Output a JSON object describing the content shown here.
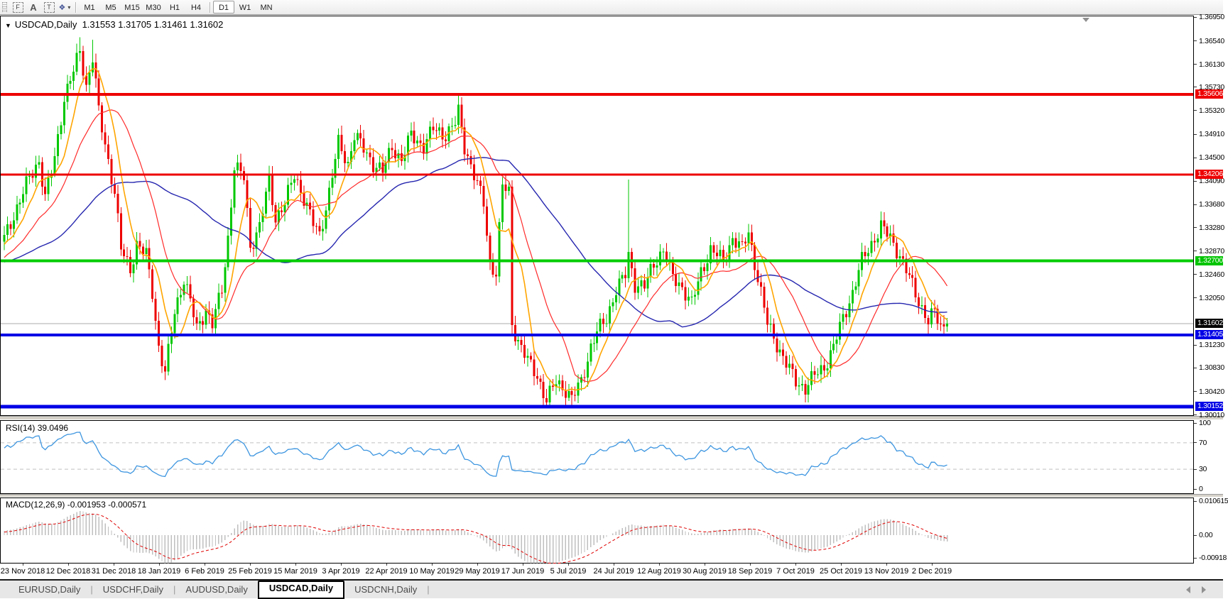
{
  "toolbar": {
    "tools": [
      {
        "name": "fibonacci",
        "label": "F"
      },
      {
        "name": "text",
        "label": "A"
      },
      {
        "name": "text-label",
        "label": "T"
      },
      {
        "name": "arrows",
        "label": "❖"
      }
    ],
    "dropdown_caret": "▾",
    "timeframes": [
      {
        "label": "M1"
      },
      {
        "label": "M5"
      },
      {
        "label": "M15"
      },
      {
        "label": "M30"
      },
      {
        "label": "H1"
      },
      {
        "label": "H4"
      },
      {
        "label": "D1"
      },
      {
        "label": "W1"
      },
      {
        "label": "MN"
      }
    ],
    "active_timeframe": "D1"
  },
  "chart": {
    "symbol_title": "USDCAD,Daily",
    "ohlc_text": "1.31553 1.31705 1.31461 1.31602",
    "title_triangle": "▼"
  },
  "chart_data": {
    "type": "candlestick",
    "symbol": "USDCAD",
    "timeframe": "Daily",
    "last_bar_ohlc": {
      "open": 1.31553,
      "high": 1.31705,
      "low": 1.31461,
      "close": 1.31602
    },
    "price_axis": {
      "ticks": [
        "1.36950",
        "1.36540",
        "1.36130",
        "1.35730",
        "1.35320",
        "1.34910",
        "1.34500",
        "1.34090",
        "1.33680",
        "1.33280",
        "1.32870",
        "1.32460",
        "1.32050",
        "1.31230",
        "1.30830",
        "1.30420",
        "1.30010"
      ],
      "max": 1.36955,
      "min": 1.30006
    },
    "x_labels": [
      "23 Nov 2018",
      "12 Dec 2018",
      "31 Dec 2018",
      "18 Jan 2019",
      "6 Feb 2019",
      "25 Feb 2019",
      "15 Mar 2019",
      "3 Apr 2019",
      "22 Apr 2019",
      "10 May 2019",
      "29 May 2019",
      "17 Jun 2019",
      "5 Jul 2019",
      "24 Jul 2019",
      "12 Aug 2019",
      "30 Aug 2019",
      "18 Sep 2019",
      "7 Oct 2019",
      "25 Oct 2019",
      "13 Nov 2019",
      "2 Dec 2019"
    ],
    "levels": [
      {
        "price": 1.35606,
        "color": "#EE0000",
        "width": 4,
        "badge": "1.35606",
        "badge_bg": "#EE0000"
      },
      {
        "price": 1.34206,
        "color": "#EE0000",
        "width": 3,
        "badge": "1.34206",
        "badge_bg": "#EE0000"
      },
      {
        "price": 1.327,
        "color": "#00CC00",
        "width": 4,
        "badge": "1.32700",
        "badge_bg": "#00C400"
      },
      {
        "price": 1.31405,
        "color": "#0000E6",
        "width": 4,
        "badge": "1.31405",
        "badge_bg": "#0000E6"
      },
      {
        "price": 1.30152,
        "color": "#0000E6",
        "width": 5,
        "badge": "1.30152",
        "badge_bg": "#0000E6"
      }
    ],
    "current_price": {
      "value": 1.31602,
      "badge": "1.31602",
      "line_color": "#ABABAB",
      "badge_bg": "#000000"
    },
    "candles": {
      "count": 300,
      "bull_color": "#00C800",
      "bear_color": "#EE0000",
      "close_keypoints": [
        [
          -60,
          1.322
        ],
        [
          -40,
          1.3285
        ],
        [
          -20,
          1.324
        ],
        [
          -5,
          1.3295
        ],
        [
          0,
          1.331
        ],
        [
          3,
          1.335
        ],
        [
          8,
          1.3415
        ],
        [
          11,
          1.3445
        ],
        [
          13,
          1.338
        ],
        [
          16,
          1.345
        ],
        [
          19,
          1.3555
        ],
        [
          22,
          1.36
        ],
        [
          24,
          1.3638
        ],
        [
          26,
          1.3575
        ],
        [
          28,
          1.3625
        ],
        [
          30,
          1.353
        ],
        [
          33,
          1.3445
        ],
        [
          35,
          1.339
        ],
        [
          37,
          1.329
        ],
        [
          40,
          1.3255
        ],
        [
          42,
          1.33
        ],
        [
          45,
          1.328
        ],
        [
          47,
          1.3215
        ],
        [
          49,
          1.312
        ],
        [
          51,
          1.3075
        ],
        [
          54,
          1.318
        ],
        [
          57,
          1.324
        ],
        [
          59,
          1.32
        ],
        [
          61,
          1.315
        ],
        [
          64,
          1.3185
        ],
        [
          66,
          1.316
        ],
        [
          69,
          1.322
        ],
        [
          71,
          1.331
        ],
        [
          73,
          1.3435
        ],
        [
          76,
          1.3415
        ],
        [
          78,
          1.3295
        ],
        [
          81,
          1.333
        ],
        [
          84,
          1.341
        ],
        [
          86,
          1.3345
        ],
        [
          89,
          1.337
        ],
        [
          92,
          1.342
        ],
        [
          95,
          1.338
        ],
        [
          98,
          1.3335
        ],
        [
          100,
          1.3315
        ],
        [
          103,
          1.339
        ],
        [
          106,
          1.3475
        ],
        [
          109,
          1.344
        ],
        [
          111,
          1.349
        ],
        [
          114,
          1.3465
        ],
        [
          117,
          1.344
        ],
        [
          120,
          1.3425
        ],
        [
          123,
          1.347
        ],
        [
          126,
          1.3445
        ],
        [
          129,
          1.349
        ],
        [
          133,
          1.347
        ],
        [
          136,
          1.35
        ],
        [
          140,
          1.349
        ],
        [
          143,
          1.351
        ],
        [
          144,
          1.353
        ],
        [
          146,
          1.347
        ],
        [
          149,
          1.342
        ],
        [
          152,
          1.337
        ],
        [
          154,
          1.3265
        ],
        [
          156,
          1.325
        ],
        [
          158,
          1.34
        ],
        [
          160,
          1.339
        ],
        [
          161,
          1.316
        ],
        [
          163,
          1.313
        ],
        [
          166,
          1.3095
        ],
        [
          169,
          1.307
        ],
        [
          172,
          1.3025
        ],
        [
          175,
          1.306
        ],
        [
          178,
          1.3045
        ],
        [
          180,
          1.3028
        ],
        [
          183,
          1.306
        ],
        [
          186,
          1.312
        ],
        [
          188,
          1.3145
        ],
        [
          191,
          1.317
        ],
        [
          194,
          1.322
        ],
        [
          197,
          1.3245
        ],
        [
          198,
          1.328
        ],
        [
          200,
          1.323
        ],
        [
          203,
          1.3225
        ],
        [
          206,
          1.3265
        ],
        [
          209,
          1.329
        ],
        [
          212,
          1.324
        ],
        [
          215,
          1.3225
        ],
        [
          218,
          1.3195
        ],
        [
          221,
          1.325
        ],
        [
          224,
          1.329
        ],
        [
          228,
          1.327
        ],
        [
          231,
          1.331
        ],
        [
          234,
          1.329
        ],
        [
          236,
          1.332
        ],
        [
          239,
          1.324
        ],
        [
          242,
          1.316
        ],
        [
          245,
          1.3125
        ],
        [
          248,
          1.309
        ],
        [
          251,
          1.306
        ],
        [
          254,
          1.3048
        ],
        [
          257,
          1.307
        ],
        [
          260,
          1.3085
        ],
        [
          263,
          1.312
        ],
        [
          266,
          1.317
        ],
        [
          269,
          1.3215
        ],
        [
          272,
          1.327
        ],
        [
          275,
          1.33
        ],
        [
          278,
          1.333
        ],
        [
          281,
          1.331
        ],
        [
          284,
          1.328
        ],
        [
          287,
          1.324
        ],
        [
          290,
          1.32
        ],
        [
          293,
          1.3165
        ],
        [
          295,
          1.318
        ],
        [
          297,
          1.3155
        ],
        [
          299,
          1.31602
        ]
      ],
      "wick_overrides": [
        [
          144,
          "high",
          1.35606
        ],
        [
          198,
          "high",
          1.3412
        ],
        [
          172,
          "low",
          1.30152
        ],
        [
          180,
          "low",
          1.30152
        ],
        [
          24,
          "high",
          1.366
        ],
        [
          28,
          "high",
          1.3656
        ],
        [
          299,
          "high",
          1.31705
        ],
        [
          299,
          "low",
          1.31461
        ]
      ]
    },
    "moving_averages": [
      {
        "name": "ma-fast",
        "period": 8,
        "color": "#FFA500",
        "stroke": 1.6
      },
      {
        "name": "ma-mid",
        "period": 21,
        "color": "#FF2A2A",
        "stroke": 1.2
      },
      {
        "name": "ma-slow",
        "period": 55,
        "color": "#2626B0",
        "stroke": 1.4
      }
    ],
    "rsi": {
      "name": "RSI(14)",
      "value": "39.0496",
      "period": 14,
      "levels": [
        70,
        30
      ],
      "axis_ticks": [
        100,
        70,
        30,
        0
      ],
      "line_color": "#3E96E0"
    },
    "macd": {
      "name": "MACD(12,26,9)",
      "main_value": "-0.001953",
      "signal_value": "-0.000571",
      "fast": 12,
      "slow": 26,
      "signal": 9,
      "axis_ticks": [
        {
          "label": "0.010615",
          "value": 0.010615
        },
        {
          "label": "0.00",
          "value": 0
        },
        {
          "label": "-0.00918",
          "value": -0.00918
        }
      ],
      "bar_color": "#BFBFBF",
      "signal_color": "#E00000"
    }
  },
  "tabs": {
    "items": [
      {
        "label": "EURUSD,Daily",
        "active": false
      },
      {
        "label": "USDCHF,Daily",
        "active": false
      },
      {
        "label": "AUDUSD,Daily",
        "active": false
      },
      {
        "label": "USDCAD,Daily",
        "active": true
      },
      {
        "label": "USDCNH,Daily",
        "active": false
      }
    ],
    "separator": "|"
  }
}
